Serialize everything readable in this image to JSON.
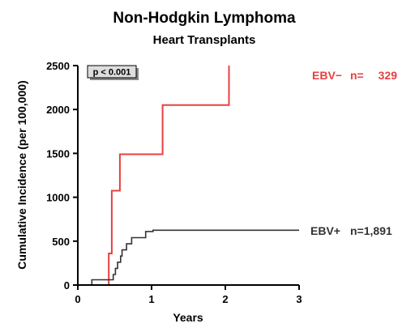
{
  "chart_data": {
    "type": "line",
    "title": "Non-Hodgkin Lymphoma",
    "subtitle": "Heart Transplants",
    "xlabel": "Years",
    "ylabel": "Cumulative Incidence (per 100,000)",
    "xlim": [
      0,
      3
    ],
    "ylim": [
      0,
      2500
    ],
    "xticks": [
      0,
      1,
      2,
      3
    ],
    "yticks": [
      0,
      500,
      1000,
      1500,
      2000,
      2500
    ],
    "grid": false,
    "annotation": "p < 0.001",
    "series": [
      {
        "name": "EBV−",
        "n_label": "n=",
        "n_value": "329",
        "color": "#e84040",
        "step": true,
        "x": [
          0,
          0.42,
          0.42,
          0.46,
          0.46,
          0.57,
          0.57,
          1.15,
          1.15,
          2.05,
          2.05
        ],
        "y": [
          0,
          0,
          360,
          360,
          1075,
          1075,
          1490,
          1490,
          2050,
          2050,
          2500
        ]
      },
      {
        "name": "EBV+",
        "n_label": "n=1,891",
        "n_value": "",
        "color": "#333333",
        "step": true,
        "x": [
          0,
          0.19,
          0.19,
          0.48,
          0.48,
          0.51,
          0.51,
          0.54,
          0.54,
          0.58,
          0.58,
          0.6,
          0.6,
          0.66,
          0.66,
          0.73,
          0.73,
          0.92,
          0.92,
          1.02,
          1.02,
          3.0
        ],
        "y": [
          0,
          0,
          60,
          60,
          120,
          120,
          190,
          190,
          260,
          260,
          330,
          330,
          400,
          400,
          470,
          470,
          540,
          540,
          610,
          610,
          625,
          625
        ]
      }
    ]
  }
}
